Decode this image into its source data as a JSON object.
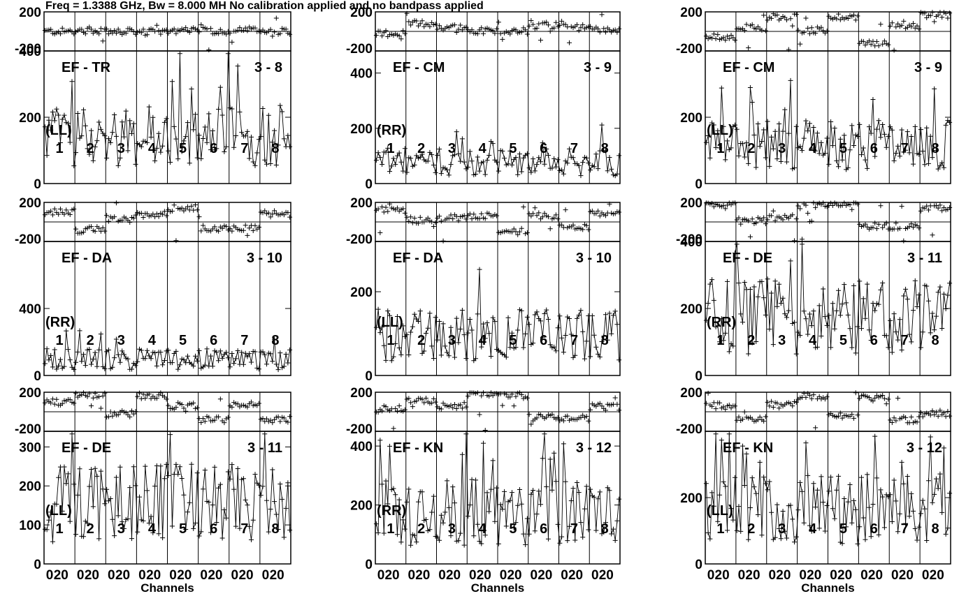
{
  "header": "Freq = 1.3388 GHz, Bw = 8.000 MH   No calibration applied and no bandpass applied",
  "chart_data": {
    "type": "scatter",
    "description_of_layout": "3 columns x 3 rows of baseline panels; each panel has a phase subplot (top) and an amplitude subplot (bottom) split into 8 IF channel groups",
    "common": {
      "xlabel": "Channels",
      "x_group_tick_labels": [
        "0",
        "20",
        "0",
        "20",
        "0",
        "20",
        "0",
        "20",
        "0",
        "20",
        "0",
        "20",
        "0",
        "20",
        "0",
        "20"
      ],
      "if_labels": [
        "1",
        "2",
        "3",
        "4",
        "5",
        "6",
        "7",
        "8"
      ],
      "phase_ylim": [
        -200,
        200
      ],
      "phase_tick_labels": [
        "200",
        "-200"
      ]
    },
    "panels": [
      {
        "baseline": "EF - TR",
        "antennas": "3 - 8",
        "pol": "(LL)",
        "amp_ylim": [
          0,
          400
        ],
        "amp_tick_labels": [
          "400",
          "200",
          "0"
        ],
        "amp_level": 150,
        "phase_means": [
          0,
          10,
          -5,
          -8,
          5,
          5,
          12,
          3
        ]
      },
      {
        "baseline": "EF - CM",
        "antennas": "3 - 9",
        "pol": "(RR)",
        "amp_ylim": [
          0,
          480
        ],
        "amp_tick_labels": [
          "400",
          "200",
          "0"
        ],
        "amp_level": 80,
        "phase_means": [
          -20,
          80,
          40,
          10,
          5,
          60,
          40,
          20
        ]
      },
      {
        "baseline": "EF - CM",
        "antennas": "3 - 9",
        "pol": "(LL)",
        "amp_ylim": [
          0,
          400
        ],
        "amp_tick_labels": [
          "200",
          "0"
        ],
        "amp_level": 120,
        "phase_means": [
          -60,
          40,
          150,
          10,
          150,
          -120,
          60,
          170
        ]
      },
      {
        "baseline": "EF - DA",
        "antennas": "3 - 10",
        "pol": "(RR)",
        "amp_ylim": [
          0,
          800
        ],
        "amp_tick_labels": [
          "400",
          "0"
        ],
        "amp_level": 100,
        "phase_means": [
          100,
          -80,
          40,
          80,
          140,
          -60,
          -60,
          80
        ]
      },
      {
        "baseline": "EF - DA",
        "antennas": "3 - 10",
        "pol": "(LL)",
        "amp_ylim": [
          0,
          320
        ],
        "amp_tick_labels": [
          "200",
          "0"
        ],
        "amp_level": 100,
        "phase_means": [
          120,
          20,
          40,
          60,
          -100,
          60,
          -60,
          80
        ]
      },
      {
        "baseline": "EF - DE",
        "antennas": "3 - 11",
        "pol": "(RR)",
        "amp_ylim": [
          0,
          400
        ],
        "amp_tick_labels": [
          "400",
          "200",
          "0"
        ],
        "amp_level": 180,
        "phase_means": [
          170,
          10,
          40,
          170,
          190,
          -40,
          -40,
          140
        ]
      },
      {
        "baseline": "EF - DE",
        "antennas": "3 - 11",
        "pol": "(LL)",
        "amp_ylim": [
          0,
          340
        ],
        "amp_tick_labels": [
          "300",
          "200",
          "100",
          "0"
        ],
        "amp_level": 160,
        "phase_means": [
          100,
          160,
          -20,
          160,
          60,
          -80,
          80,
          -80
        ]
      },
      {
        "baseline": "EF - KN",
        "antennas": "3 - 12",
        "pol": "(RR)",
        "amp_ylim": [
          0,
          450
        ],
        "amp_tick_labels": [
          "400",
          "200",
          "0"
        ],
        "amp_level": 180,
        "phase_means": [
          30,
          120,
          60,
          180,
          170,
          -60,
          -60,
          50
        ]
      },
      {
        "baseline": "EF - KN",
        "antennas": "3 - 12",
        "pol": "(LL)",
        "amp_ylim": [
          0,
          400
        ],
        "amp_tick_labels": [
          "200",
          "0"
        ],
        "amp_level": 170,
        "phase_means": [
          60,
          -80,
          80,
          160,
          -40,
          140,
          -80,
          -20
        ]
      }
    ]
  }
}
